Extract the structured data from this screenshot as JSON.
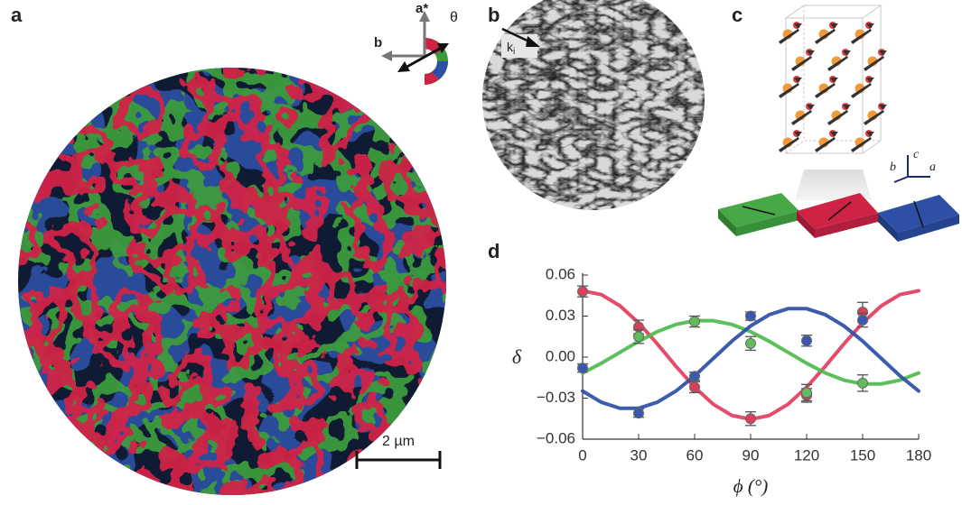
{
  "panel_a": {
    "label": "a",
    "inset": {
      "a_star": "a*",
      "b": "b",
      "theta": "θ"
    },
    "scale_bar": "2 µm"
  },
  "panel_b": {
    "label": "b",
    "k": "k",
    "k_sub": "i"
  },
  "panel_c": {
    "label": "c",
    "axes": {
      "c": "c",
      "b": "b",
      "a": "a"
    }
  },
  "chart_data": {
    "type": "line",
    "panel_label": "d",
    "xlabel": "ϕ (°)",
    "ylabel": "δ",
    "xlim": [
      0,
      180
    ],
    "ylim": [
      -0.06,
      0.06
    ],
    "xticks": [
      0,
      30,
      60,
      90,
      120,
      150,
      180
    ],
    "yticks": [
      0.06,
      0.03,
      {
        "value": 0,
        "label": "0.00"
      },
      {
        "value": -0.03,
        "label": "−0.03"
      },
      {
        "value": -0.06,
        "label": "−0.06"
      }
    ],
    "series": [
      {
        "type": "line",
        "color": "#e23d5e",
        "x": [
          0,
          10,
          20,
          30,
          40,
          50,
          60,
          70,
          80,
          90,
          100,
          110,
          120,
          130,
          140,
          150,
          160,
          170,
          180
        ],
        "values": [
          0.0485,
          0.0457,
          0.0375,
          0.025,
          0.0097,
          -0.0067,
          -0.022,
          -0.0345,
          -0.0427,
          -0.0455,
          -0.0427,
          -0.0345,
          -0.022,
          -0.0067,
          0.0097,
          0.025,
          0.0375,
          0.0457,
          0.0485
        ]
      },
      {
        "type": "line",
        "color": "#4dbb4d",
        "x": [
          0,
          10,
          20,
          30,
          40,
          50,
          60,
          70,
          80,
          90,
          100,
          110,
          120,
          130,
          140,
          150,
          160,
          170,
          180
        ],
        "values": [
          -0.0116,
          -0.0045,
          0.0035,
          0.0115,
          0.0186,
          0.0239,
          0.0266,
          0.0266,
          0.0239,
          0.0186,
          0.0115,
          0.0035,
          -0.0045,
          -0.0116,
          -0.0169,
          -0.0196,
          -0.0196,
          -0.0169,
          -0.0116
        ]
      },
      {
        "type": "line",
        "color": "#2d4ea6",
        "x": [
          0,
          10,
          20,
          30,
          40,
          50,
          60,
          70,
          80,
          90,
          100,
          110,
          120,
          130,
          140,
          150,
          160,
          170,
          180
        ],
        "values": [
          -0.0248,
          -0.033,
          -0.0374,
          -0.0374,
          -0.033,
          -0.0248,
          -0.0137,
          -0.001,
          0.0117,
          0.0228,
          0.031,
          0.0354,
          0.0354,
          0.031,
          0.0228,
          0.0117,
          -0.001,
          -0.0137,
          -0.0248
        ]
      },
      {
        "type": "scatter",
        "color": "#d8405a",
        "x": [
          0,
          30,
          60,
          90,
          120,
          150
        ],
        "values": [
          0.048,
          0.022,
          -0.022,
          -0.045,
          -0.028,
          0.033
        ],
        "errors": [
          0.004,
          0.005,
          0.004,
          0.005,
          0.005,
          0.007
        ]
      },
      {
        "type": "scatter",
        "color": "#62bb5c",
        "x": [
          30,
          60,
          90,
          120,
          150
        ],
        "values": [
          0.015,
          0.026,
          0.01,
          -0.026,
          -0.019
        ],
        "errors": [
          0.005,
          0.004,
          0.005,
          0.006,
          0.006
        ]
      },
      {
        "type": "scatter",
        "color": "#3a58b2",
        "x": [
          0,
          30,
          60,
          90,
          120,
          150
        ],
        "values": [
          -0.008,
          -0.041,
          -0.014,
          0.03,
          0.012,
          0.027
        ],
        "errors": [
          0.003,
          0.003,
          0.003,
          0.003,
          0.004,
          0.005
        ]
      }
    ]
  }
}
